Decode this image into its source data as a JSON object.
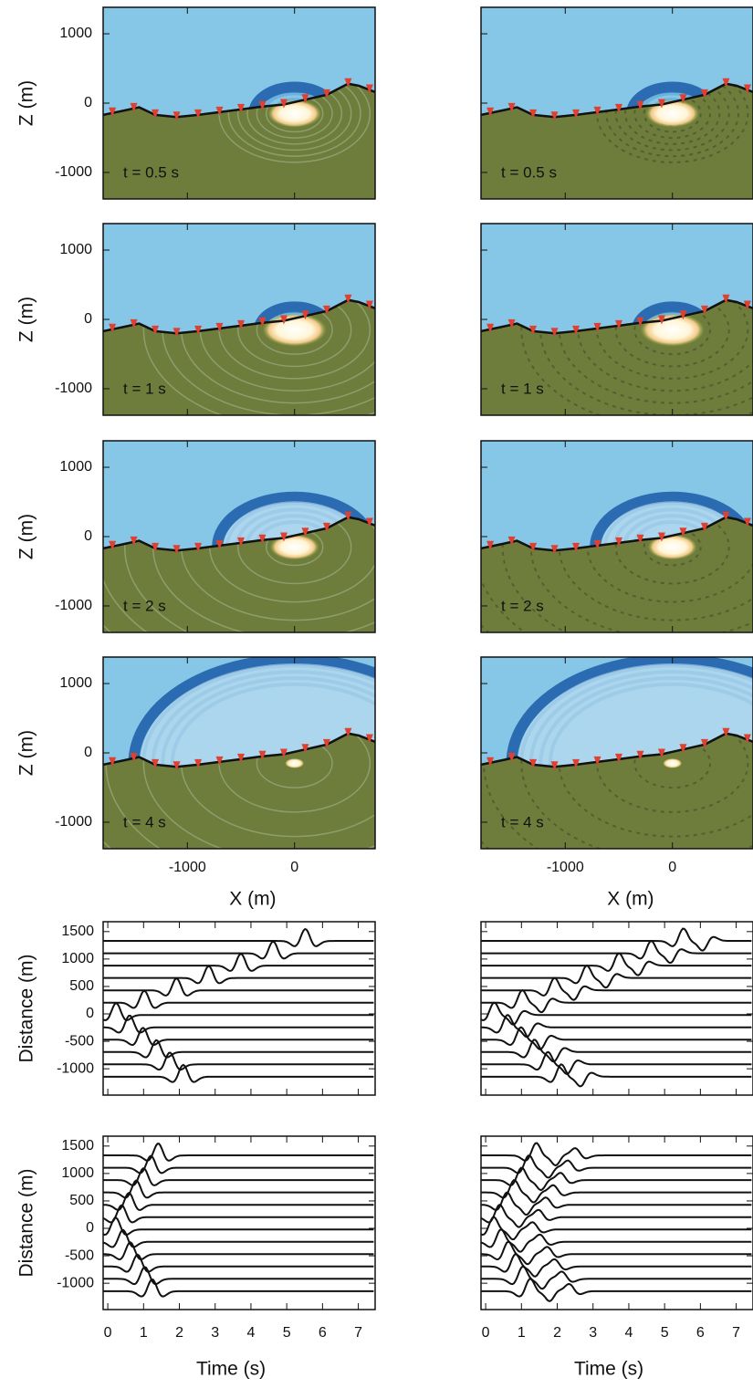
{
  "snapshots": {
    "xlabel": "X (m)",
    "ylabel": "Z (m)",
    "xlim": [
      -1786,
      752
    ],
    "ylim": [
      -1382,
      1382
    ],
    "xticks": [
      -1000,
      0
    ],
    "yticks": [
      1000,
      0,
      -1000
    ],
    "times": [
      "t = 0.5 s",
      "t = 1 s",
      "t = 2 s",
      "t = 4 s"
    ]
  },
  "seismograms": {
    "xlabel": "Time (s)",
    "ylabel": "Distance (m)",
    "xlim": [
      -0.13,
      7.47
    ],
    "ylim": [
      -1480,
      1680
    ],
    "xticks": [
      0,
      1,
      2,
      3,
      4,
      5,
      6,
      7
    ],
    "yticks": [
      1500,
      1000,
      500,
      0,
      -500,
      -1000
    ]
  }
}
